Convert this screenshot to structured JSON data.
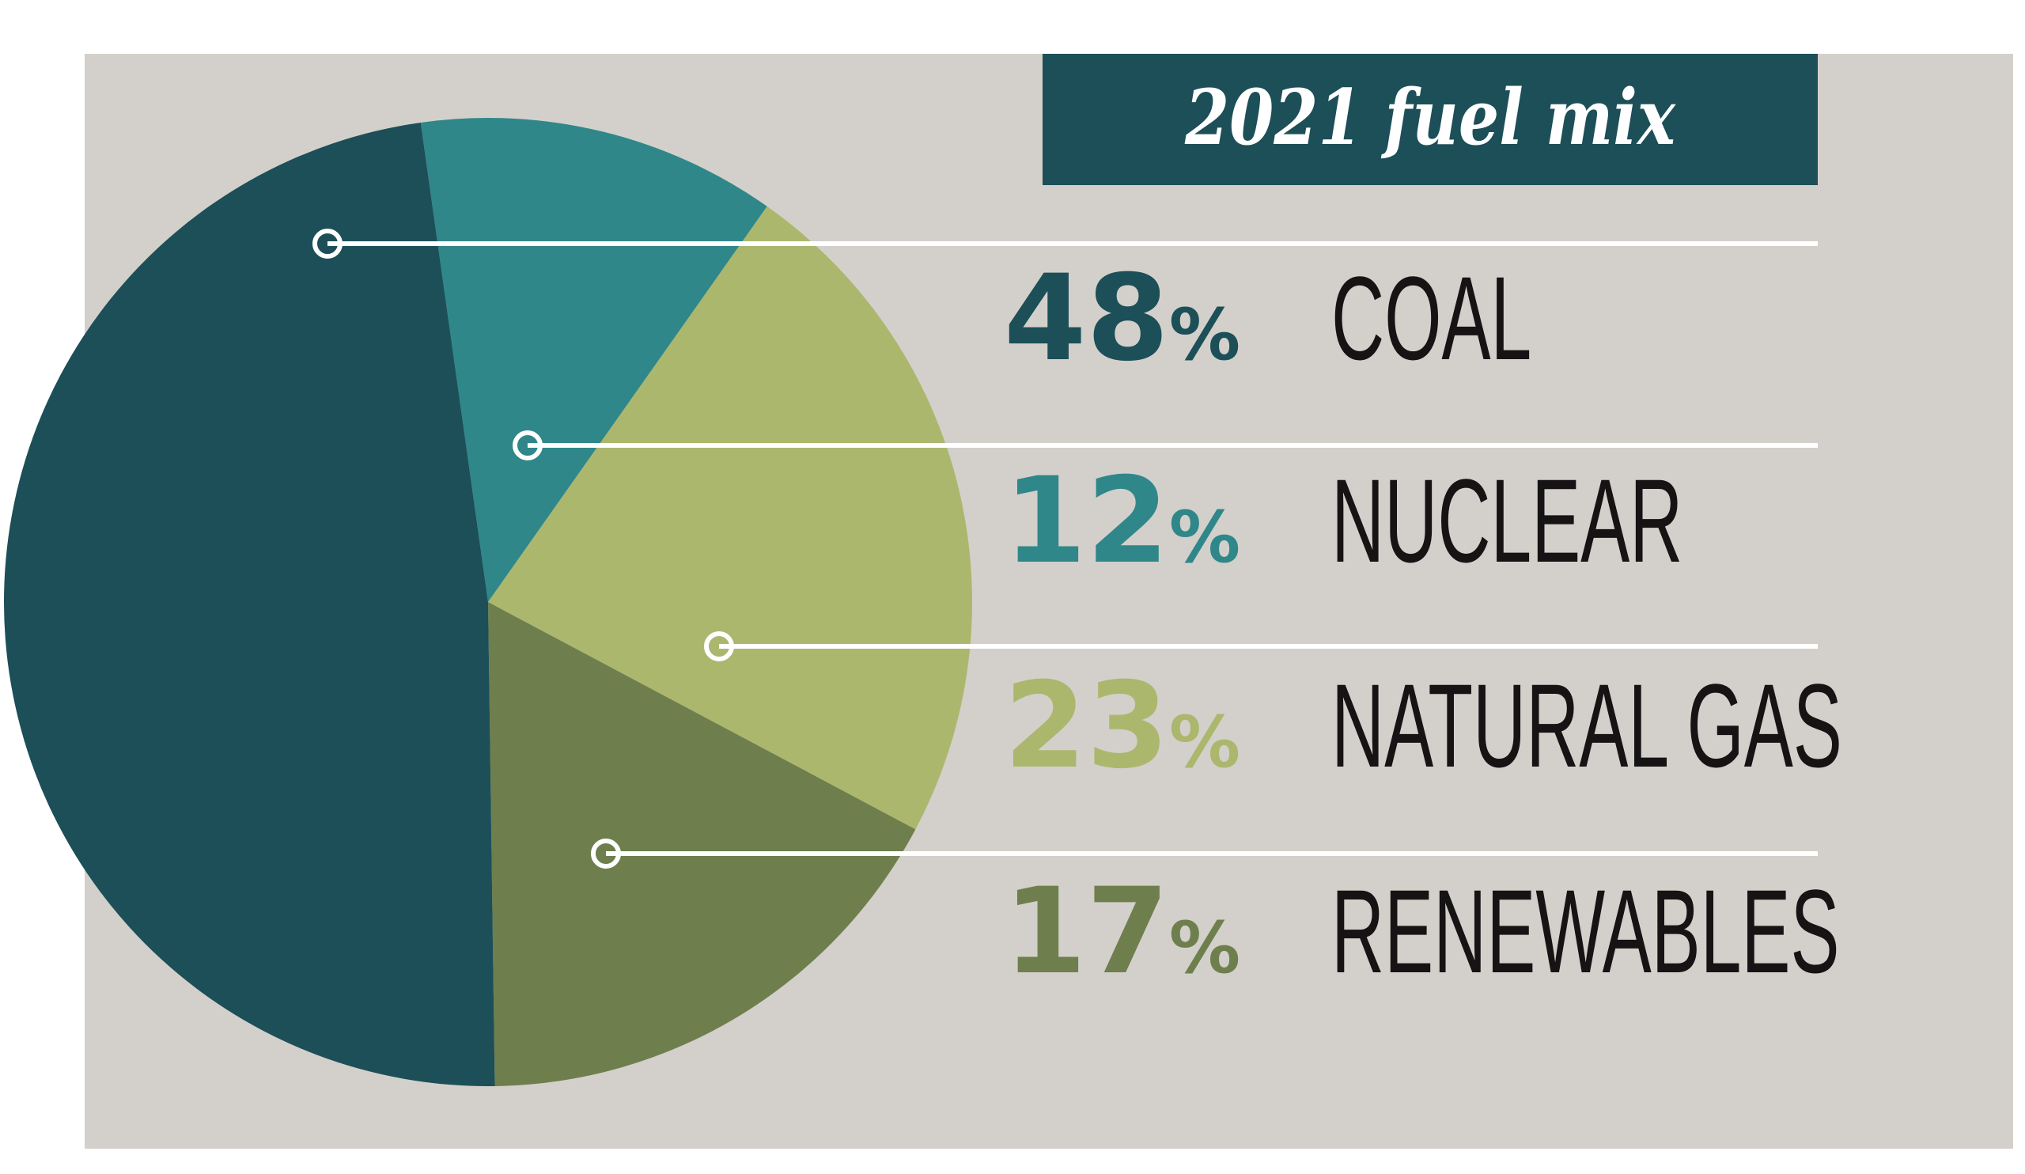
{
  "chart_data": {
    "type": "pie",
    "title": "2021 fuel mix",
    "start_angle_deg": -8,
    "direction": "clockwise",
    "slices": [
      {
        "label": "NUCLEAR",
        "value": 12,
        "pct_text": "12",
        "color": "#2f878a"
      },
      {
        "label": "NATURAL GAS",
        "value": 23,
        "pct_text": "23",
        "color": "#acb76e"
      },
      {
        "label": "RENEWABLES",
        "value": 17,
        "pct_text": "17",
        "color": "#6e7f4d"
      },
      {
        "label": "COAL",
        "value": 48,
        "pct_text": "48",
        "color": "#1c4f58"
      }
    ],
    "legend_order": [
      "COAL",
      "NUCLEAR",
      "NATURAL GAS",
      "RENEWABLES"
    ],
    "percent_sign": "%"
  },
  "colors": {
    "background": "#d3d0cb",
    "title_box": "#1c4f58",
    "lines": "#ffffff"
  }
}
